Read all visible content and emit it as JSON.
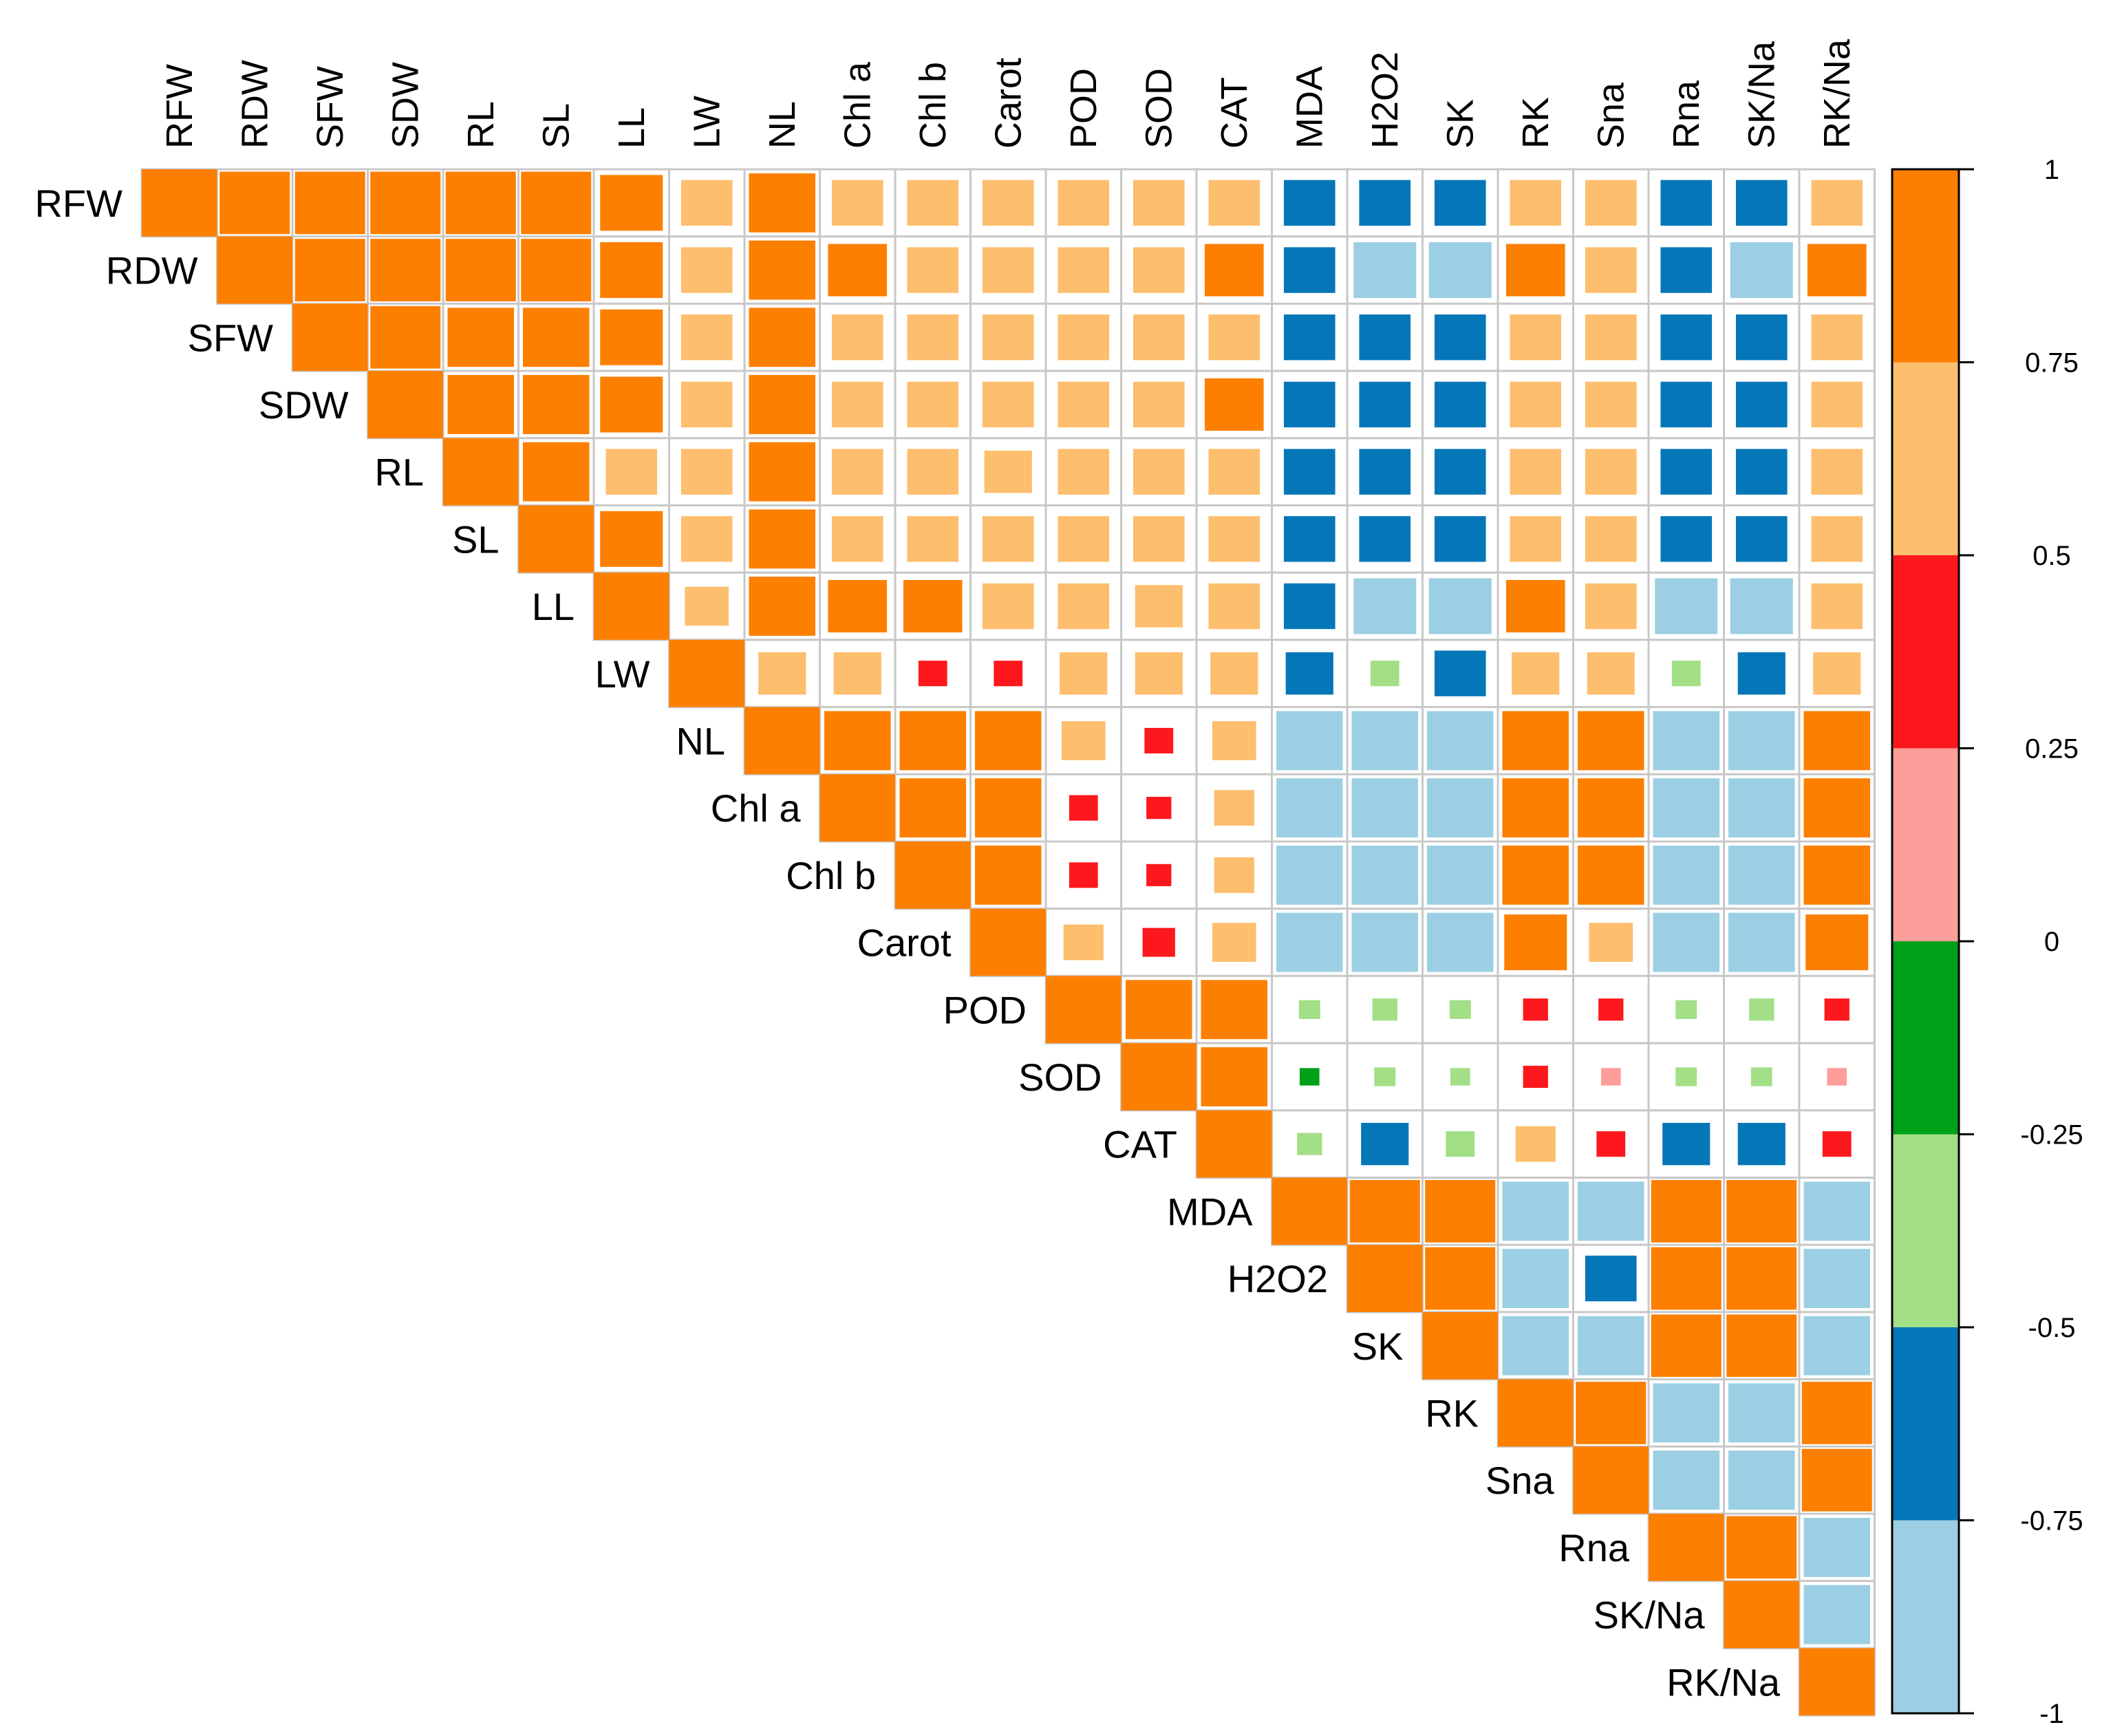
{
  "chart_data": {
    "type": "heatmap",
    "subtype": "upper-triangle correlation matrix (correlogram)",
    "variables": [
      "RFW",
      "RDW",
      "SFW",
      "SDW",
      "RL",
      "SL",
      "LL",
      "LW",
      "NL",
      "Chl a",
      "Chl b",
      "Carot",
      "POD",
      "SOD",
      "CAT",
      "MDA",
      "H2O2",
      "SK",
      "RK",
      "Sna",
      "Rna",
      "SK/Na",
      "RK/Na"
    ],
    "matrix": [
      [
        1.0,
        0.95,
        0.95,
        0.95,
        0.95,
        0.95,
        0.85,
        0.7,
        0.9,
        0.7,
        0.7,
        0.7,
        0.7,
        0.7,
        0.7,
        -0.7,
        -0.7,
        -0.7,
        0.7,
        0.7,
        -0.7,
        -0.7,
        0.7
      ],
      [
        null,
        1.0,
        0.95,
        0.95,
        0.95,
        0.95,
        0.85,
        0.7,
        0.9,
        0.8,
        0.7,
        0.7,
        0.7,
        0.7,
        0.8,
        -0.7,
        -0.85,
        -0.85,
        0.8,
        0.7,
        -0.7,
        -0.85,
        0.8
      ],
      [
        null,
        null,
        1.0,
        0.95,
        0.9,
        0.9,
        0.85,
        0.7,
        0.9,
        0.7,
        0.7,
        0.7,
        0.7,
        0.7,
        0.7,
        -0.7,
        -0.7,
        -0.7,
        0.7,
        0.7,
        -0.7,
        -0.7,
        0.7
      ],
      [
        null,
        null,
        null,
        1.0,
        0.9,
        0.9,
        0.85,
        0.7,
        0.9,
        0.7,
        0.7,
        0.7,
        0.7,
        0.7,
        0.8,
        -0.7,
        -0.7,
        -0.7,
        0.7,
        0.7,
        -0.7,
        -0.7,
        0.7
      ],
      [
        null,
        null,
        null,
        null,
        1.0,
        0.9,
        0.7,
        0.7,
        0.9,
        0.7,
        0.7,
        0.65,
        0.7,
        0.7,
        0.7,
        -0.7,
        -0.7,
        -0.7,
        0.7,
        0.7,
        -0.7,
        -0.7,
        0.7
      ],
      [
        null,
        null,
        null,
        null,
        null,
        1.0,
        0.85,
        0.7,
        0.9,
        0.7,
        0.7,
        0.7,
        0.7,
        0.7,
        0.7,
        -0.7,
        -0.7,
        -0.7,
        0.7,
        0.7,
        -0.7,
        -0.7,
        0.7
      ],
      [
        null,
        null,
        null,
        null,
        null,
        null,
        1.0,
        0.6,
        0.9,
        0.8,
        0.8,
        0.7,
        0.7,
        0.65,
        0.7,
        -0.7,
        -0.85,
        -0.85,
        0.8,
        0.7,
        -0.85,
        -0.85,
        0.7
      ],
      [
        null,
        null,
        null,
        null,
        null,
        null,
        null,
        1.0,
        0.65,
        0.65,
        0.4,
        0.4,
        0.65,
        0.65,
        0.65,
        -0.65,
        -0.4,
        -0.7,
        0.65,
        0.65,
        -0.4,
        -0.65,
        0.65
      ],
      [
        null,
        null,
        null,
        null,
        null,
        null,
        null,
        null,
        1.0,
        0.9,
        0.9,
        0.9,
        0.6,
        0.4,
        0.6,
        -0.9,
        -0.9,
        -0.9,
        0.9,
        0.9,
        -0.9,
        -0.9,
        0.9
      ],
      [
        null,
        null,
        null,
        null,
        null,
        null,
        null,
        null,
        null,
        1.0,
        0.9,
        0.9,
        0.4,
        0.35,
        0.55,
        -0.9,
        -0.9,
        -0.9,
        0.9,
        0.9,
        -0.9,
        -0.9,
        0.9
      ],
      [
        null,
        null,
        null,
        null,
        null,
        null,
        null,
        null,
        null,
        null,
        1.0,
        0.9,
        0.4,
        0.35,
        0.55,
        -0.9,
        -0.9,
        -0.9,
        0.9,
        0.9,
        -0.9,
        -0.9,
        0.9
      ],
      [
        null,
        null,
        null,
        null,
        null,
        null,
        null,
        null,
        null,
        null,
        null,
        1.0,
        0.55,
        0.45,
        0.6,
        -0.9,
        -0.9,
        -0.9,
        0.85,
        0.6,
        -0.9,
        -0.9,
        0.85
      ],
      [
        null,
        null,
        null,
        null,
        null,
        null,
        null,
        null,
        null,
        null,
        null,
        null,
        1.0,
        0.9,
        0.9,
        -0.3,
        -0.35,
        -0.3,
        0.35,
        0.35,
        -0.3,
        -0.35,
        0.35
      ],
      [
        null,
        null,
        null,
        null,
        null,
        null,
        null,
        null,
        null,
        null,
        null,
        null,
        null,
        1.0,
        0.9,
        -0.15,
        -0.3,
        -0.25,
        0.35,
        0.25,
        -0.3,
        -0.3,
        0.25
      ],
      [
        null,
        null,
        null,
        null,
        null,
        null,
        null,
        null,
        null,
        null,
        null,
        null,
        null,
        null,
        1.0,
        -0.35,
        -0.65,
        -0.4,
        0.55,
        0.4,
        -0.65,
        -0.65,
        0.4
      ],
      [
        null,
        null,
        null,
        null,
        null,
        null,
        null,
        null,
        null,
        null,
        null,
        null,
        null,
        null,
        null,
        1.0,
        0.95,
        0.95,
        -0.9,
        -0.9,
        0.95,
        0.95,
        -0.9
      ],
      [
        null,
        null,
        null,
        null,
        null,
        null,
        null,
        null,
        null,
        null,
        null,
        null,
        null,
        null,
        null,
        null,
        1.0,
        0.95,
        -0.9,
        -0.7,
        0.95,
        0.95,
        -0.9
      ],
      [
        null,
        null,
        null,
        null,
        null,
        null,
        null,
        null,
        null,
        null,
        null,
        null,
        null,
        null,
        null,
        null,
        null,
        1.0,
        -0.9,
        -0.9,
        0.95,
        0.95,
        -0.9
      ],
      [
        null,
        null,
        null,
        null,
        null,
        null,
        null,
        null,
        null,
        null,
        null,
        null,
        null,
        null,
        null,
        null,
        null,
        null,
        1.0,
        0.95,
        -0.9,
        -0.9,
        0.95
      ],
      [
        null,
        null,
        null,
        null,
        null,
        null,
        null,
        null,
        null,
        null,
        null,
        null,
        null,
        null,
        null,
        null,
        null,
        null,
        null,
        1.0,
        -0.9,
        -0.9,
        0.95
      ],
      [
        null,
        null,
        null,
        null,
        null,
        null,
        null,
        null,
        null,
        null,
        null,
        null,
        null,
        null,
        null,
        null,
        null,
        null,
        null,
        null,
        1.0,
        0.95,
        -0.9
      ],
      [
        null,
        null,
        null,
        null,
        null,
        null,
        null,
        null,
        null,
        null,
        null,
        null,
        null,
        null,
        null,
        null,
        null,
        null,
        null,
        null,
        null,
        1.0,
        -0.9
      ],
      [
        null,
        null,
        null,
        null,
        null,
        null,
        null,
        null,
        null,
        null,
        null,
        null,
        null,
        null,
        null,
        null,
        null,
        null,
        null,
        null,
        null,
        null,
        1.0
      ]
    ],
    "zlim": [
      -1,
      1
    ],
    "color_bins": [
      {
        "from": -1.0,
        "to": -0.75,
        "color": "#9ccfe3"
      },
      {
        "from": -0.75,
        "to": -0.5,
        "color": "#0577b8"
      },
      {
        "from": -0.5,
        "to": -0.25,
        "color": "#a2df86"
      },
      {
        "from": -0.25,
        "to": 0.0,
        "color": "#00a018"
      },
      {
        "from": 0.0,
        "to": 0.25,
        "color": "#fd9e9a"
      },
      {
        "from": 0.25,
        "to": 0.5,
        "color": "#fc181c"
      },
      {
        "from": 0.5,
        "to": 0.75,
        "color": "#fdbe6e"
      },
      {
        "from": 0.75,
        "to": 1.0,
        "color": "#fd7f00"
      }
    ],
    "colorbar_ticks": [
      "1",
      "0.75",
      "0.5",
      "0.25",
      "0",
      "-0.25",
      "-0.5",
      "-0.75",
      "-1"
    ],
    "colorbar_tick_values": [
      1,
      0.75,
      0.5,
      0.25,
      0,
      -0.25,
      -0.5,
      -0.75,
      -1
    ],
    "title": "",
    "xlabel": "",
    "ylabel": "",
    "legend": "right"
  }
}
